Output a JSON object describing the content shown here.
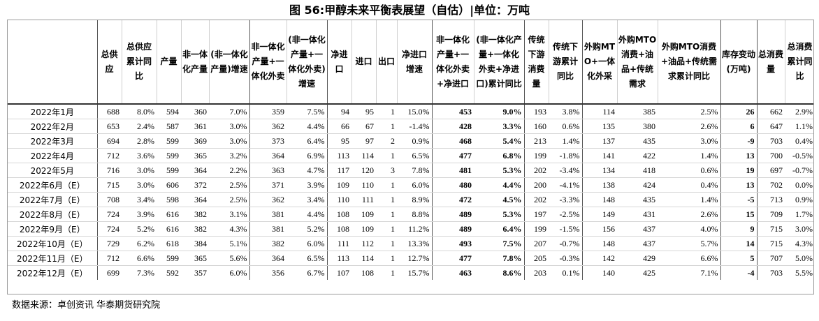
{
  "title": "图 56:甲醇未来平衡表展望（自估）|单位：万吨",
  "source": "数据来源：卓创资讯  华泰期货研究院",
  "columns": [
    "",
    "总供应",
    "总供应累计同比",
    "产量",
    "非一体化产量",
    "(非一体化产量)增速",
    "非一体化产量+一体化外卖",
    "(非一体化产量+一体化外卖)增速",
    "净进口",
    "进口",
    "出口",
    "净进口增速",
    "非一体化产量+一体化外卖+净进口",
    "(非一体化产量+一体化外卖+净进口)累计同比",
    "传统下游消费量",
    "传统下游累计同比",
    "外购MTO+一体化外采",
    "外购MTO消费+油品+传统需求",
    "外购MTO消费+油品+传统需求累计同比",
    "库存变动(万吨)",
    "总消费量",
    "总消费累计同比"
  ],
  "rows": [
    [
      "2022年1月",
      "688",
      "8.0%",
      "594",
      "360",
      "7.0%",
      "359",
      "7.5%",
      "94",
      "95",
      "1",
      "15.0%",
      "453",
      "9.0%",
      "193",
      "3.8%",
      "114",
      "385",
      "2.5%",
      "26",
      "662",
      "2.9%"
    ],
    [
      "2022年2月",
      "653",
      "2.4%",
      "587",
      "361",
      "3.0%",
      "362",
      "4.4%",
      "66",
      "67",
      "1",
      "-1.4%",
      "428",
      "3.3%",
      "160",
      "0.6%",
      "135",
      "380",
      "2.6%",
      "6",
      "647",
      "1.1%"
    ],
    [
      "2022年3月",
      "694",
      "2.8%",
      "599",
      "369",
      "3.0%",
      "373",
      "6.4%",
      "95",
      "97",
      "2",
      "0.9%",
      "468",
      "5.4%",
      "213",
      "1.4%",
      "137",
      "435",
      "3.0%",
      "-9",
      "703",
      "0.4%"
    ],
    [
      "2022年4月",
      "712",
      "3.6%",
      "599",
      "365",
      "3.2%",
      "364",
      "6.9%",
      "113",
      "114",
      "1",
      "6.5%",
      "477",
      "6.8%",
      "199",
      "-1.8%",
      "141",
      "422",
      "1.4%",
      "13",
      "700",
      "-0.5%"
    ],
    [
      "2022年5月",
      "716",
      "3.0%",
      "599",
      "364",
      "2.2%",
      "363",
      "4.7%",
      "117",
      "120",
      "3",
      "7.8%",
      "481",
      "5.3%",
      "202",
      "-3.4%",
      "134",
      "418",
      "0.6%",
      "19",
      "697",
      "-0.7%"
    ],
    [
      "2022年6月（E）",
      "715",
      "3.0%",
      "606",
      "372",
      "2.5%",
      "371",
      "3.9%",
      "109",
      "110",
      "1",
      "6.0%",
      "480",
      "4.4%",
      "200",
      "-4.1%",
      "138",
      "424",
      "0.4%",
      "13",
      "702",
      "0.0%"
    ],
    [
      "2022年7月（E）",
      "708",
      "3.4%",
      "598",
      "364",
      "2.5%",
      "362",
      "3.4%",
      "110",
      "111",
      "1",
      "8.9%",
      "472",
      "4.5%",
      "202",
      "-3.3%",
      "148",
      "435",
      "1.4%",
      "-5",
      "713",
      "0.9%"
    ],
    [
      "2022年8月（E）",
      "724",
      "3.9%",
      "616",
      "382",
      "3.1%",
      "381",
      "4.4%",
      "108",
      "109",
      "1",
      "8.8%",
      "489",
      "5.3%",
      "197",
      "-2.5%",
      "149",
      "431",
      "2.6%",
      "15",
      "709",
      "1.7%"
    ],
    [
      "2022年9月（E）",
      "724",
      "5.2%",
      "616",
      "382",
      "4.3%",
      "381",
      "5.2%",
      "108",
      "109",
      "1",
      "11.2%",
      "489",
      "6.4%",
      "199",
      "-1.5%",
      "156",
      "437",
      "4.0%",
      "9",
      "715",
      "3.0%"
    ],
    [
      "2022年10月（E）",
      "729",
      "6.2%",
      "618",
      "384",
      "5.1%",
      "382",
      "6.0%",
      "111",
      "112",
      "1",
      "13.3%",
      "493",
      "7.5%",
      "207",
      "-0.7%",
      "148",
      "437",
      "5.7%",
      "14",
      "715",
      "4.3%"
    ],
    [
      "2022年11月（E）",
      "712",
      "6.6%",
      "599",
      "365",
      "5.6%",
      "364",
      "6.5%",
      "113",
      "114",
      "1",
      "12.7%",
      "477",
      "7.8%",
      "205",
      "-0.3%",
      "142",
      "429",
      "6.6%",
      "5",
      "707",
      "5.0%"
    ],
    [
      "2022年12月（E）",
      "699",
      "7.3%",
      "592",
      "357",
      "6.0%",
      "356",
      "6.7%",
      "107",
      "108",
      "1",
      "15.7%",
      "463",
      "8.6%",
      "203",
      "0.1%",
      "140",
      "425",
      "7.1%",
      "-4",
      "703",
      "5.5%"
    ]
  ]
}
